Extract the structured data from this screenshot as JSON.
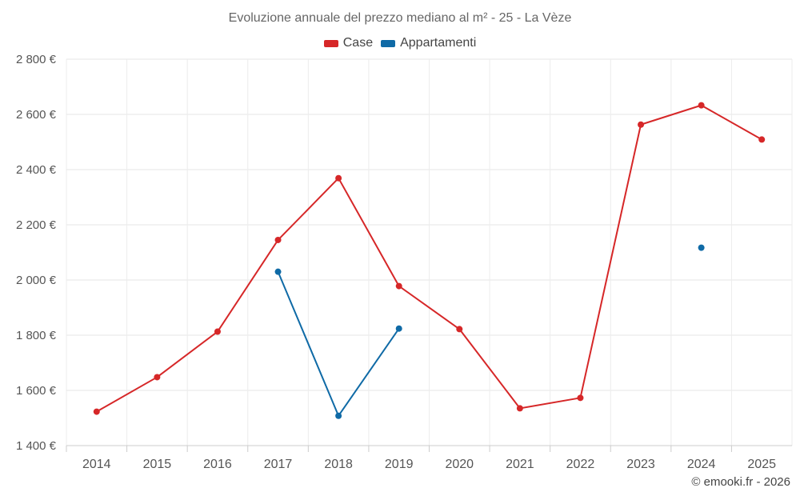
{
  "chart_data": {
    "type": "line",
    "title": "Evoluzione annuale del prezzo mediano al m² - 25 - La Vèze",
    "xlabel": "",
    "ylabel": "",
    "categories": [
      "2014",
      "2015",
      "2016",
      "2017",
      "2018",
      "2019",
      "2020",
      "2021",
      "2022",
      "2023",
      "2024",
      "2025"
    ],
    "ylim": [
      1400,
      2800
    ],
    "y_ticks": [
      1400,
      1600,
      1800,
      2000,
      2200,
      2400,
      2600,
      2800
    ],
    "y_tick_labels": [
      "1 400 €",
      "1 600 €",
      "1 800 €",
      "2 000 €",
      "2 200 €",
      "2 400 €",
      "2 600 €",
      "2 800 €"
    ],
    "grid": true,
    "legend_position": "top-center",
    "series": [
      {
        "name": "Case",
        "color": "#d62728",
        "values": [
          1523,
          1648,
          1813,
          2145,
          2369,
          1978,
          1822,
          1535,
          1573,
          2563,
          2633,
          2509
        ]
      },
      {
        "name": "Appartamenti",
        "color": "#0f6aa6",
        "values": [
          null,
          null,
          null,
          2030,
          1508,
          1824,
          null,
          null,
          null,
          null,
          2117,
          null
        ]
      }
    ]
  },
  "footer": {
    "credit": "© emooki.fr - 2026"
  }
}
